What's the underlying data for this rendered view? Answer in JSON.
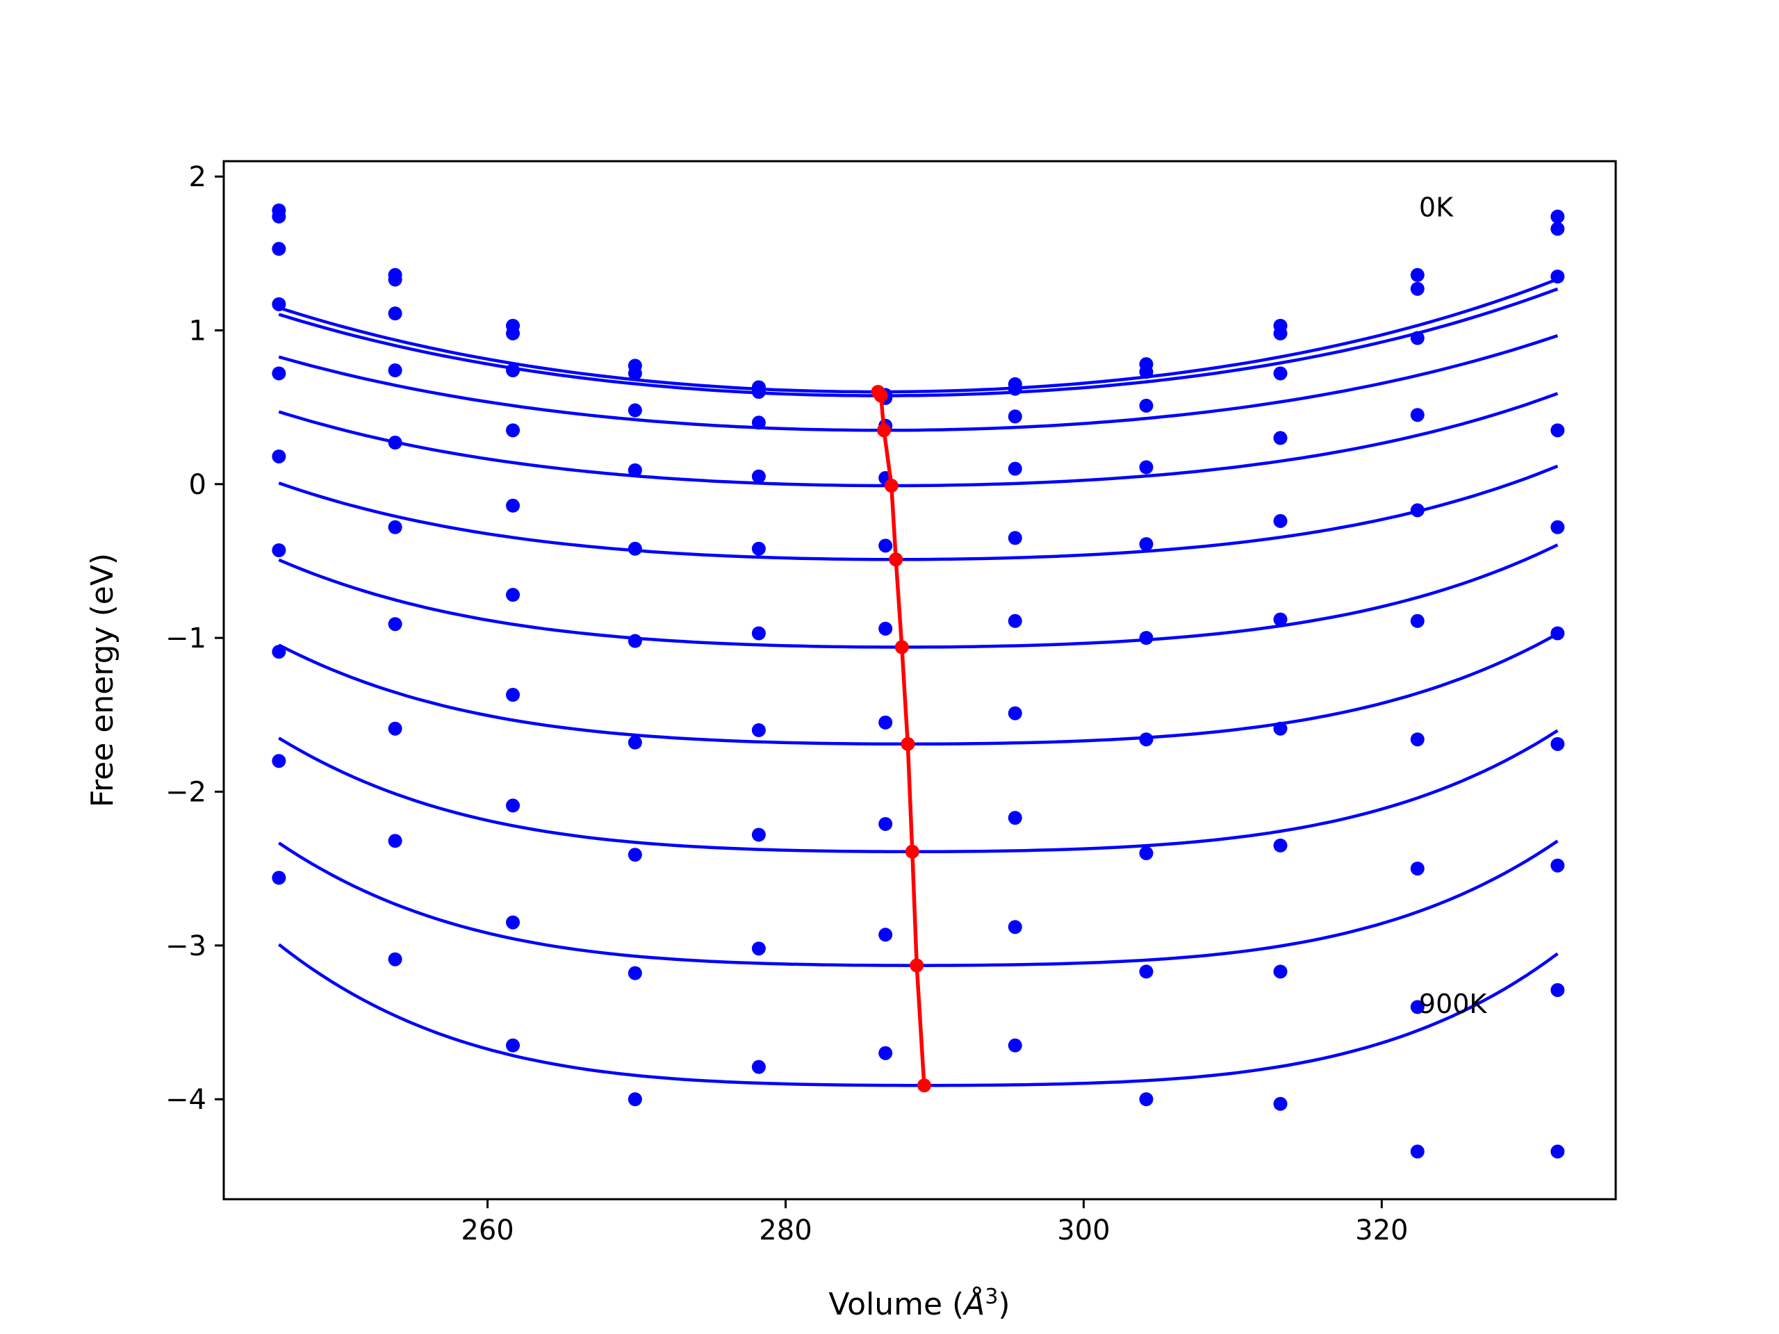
{
  "chart_data": {
    "type": "scatter",
    "xlabel": "Volume (",
    "xlabel_unit": "Å",
    "xlabel_exp": "3",
    "xlabel_close": ")",
    "ylabel": "Free energy (eV)",
    "xlim": [
      242.3,
      335.7
    ],
    "ylim": [
      -4.65,
      2.1
    ],
    "x_ticks": [
      260,
      280,
      300,
      320
    ],
    "x_tick_labels": [
      "260",
      "280",
      "300",
      "320"
    ],
    "y_ticks": [
      -4,
      -3,
      -2,
      -1,
      0,
      1,
      2
    ],
    "y_tick_labels": [
      "−4",
      "−3",
      "−2",
      "−1",
      "0",
      "1",
      "2"
    ],
    "grid": false,
    "annotations": [
      {
        "text": "0K",
        "x": 322.5,
        "y": 1.8
      },
      {
        "text": "900K",
        "x": 322.5,
        "y": -3.38
      }
    ],
    "colors": {
      "points": "#0000ff",
      "fit": "#0000ff",
      "minimum": "#ff0000"
    },
    "volumes": [
      246.0,
      253.8,
      261.7,
      269.9,
      278.2,
      286.7,
      295.4,
      304.2,
      313.2,
      322.4,
      331.8
    ],
    "series": [
      {
        "points": [
          1.78,
          1.36,
          1.03,
          0.77,
          0.63,
          0.58,
          0.65,
          0.78,
          1.03,
          1.36,
          1.74
        ],
        "fit": {
          "a": 0.6,
          "b": 0.00029,
          "c": 3e-08,
          "v0": 286.2
        }
      },
      {
        "points": [
          1.74,
          1.33,
          0.98,
          0.72,
          0.6,
          0.56,
          0.62,
          0.73,
          0.98,
          1.27,
          1.66
        ],
        "fit": {
          "a": 0.575,
          "b": 0.000275,
          "c": 3e-08,
          "v0": 286.4
        }
      },
      {
        "points": [
          1.53,
          1.11,
          0.74,
          0.48,
          0.4,
          0.38,
          0.44,
          0.51,
          0.72,
          0.95,
          1.35
        ],
        "fit": {
          "a": 0.35,
          "b": 0.00024,
          "c": 3e-08,
          "v0": 286.6
        }
      },
      {
        "points": [
          1.17,
          0.74,
          0.35,
          0.09,
          0.05,
          0.04,
          0.1,
          0.11,
          0.3,
          0.45,
          0.35
        ],
        "fit": {
          "a": -0.01,
          "b": 0.0002,
          "c": 5e-08,
          "v0": 287.1
        }
      },
      {
        "points": [
          0.72,
          0.27,
          -0.14,
          -0.42,
          -0.42,
          -0.4,
          -0.35,
          -0.39,
          -0.24,
          -0.17,
          -0.28
        ],
        "fit": {
          "a": -0.49,
          "b": 0.00017,
          "c": 7e-08,
          "v0": 287.4
        }
      },
      {
        "points": [
          0.18,
          -0.28,
          -0.72,
          -1.02,
          -0.97,
          -0.94,
          -0.89,
          -1.0,
          -0.88,
          -0.89,
          -0.97
        ],
        "fit": {
          "a": -1.06,
          "b": 0.00015,
          "c": 1e-07,
          "v0": 287.8
        }
      },
      {
        "points": [
          -0.43,
          -0.91,
          -1.37,
          -1.68,
          -1.6,
          -1.55,
          -1.49,
          -1.66,
          -1.59,
          -1.66,
          -1.69
        ],
        "fit": {
          "a": -1.69,
          "b": 0.00013,
          "c": 1.3e-07,
          "v0": 288.2
        }
      },
      {
        "points": [
          -1.09,
          -1.59,
          -2.09,
          -2.41,
          -2.28,
          -2.21,
          -2.17,
          -2.4,
          -2.35,
          -2.5,
          -2.48
        ],
        "fit": {
          "a": -2.39,
          "b": 0.00012,
          "c": 1.6e-07,
          "v0": 288.5
        }
      },
      {
        "points": [
          -1.8,
          -2.32,
          -2.85,
          -3.18,
          -3.02,
          -2.93,
          -2.88,
          -3.17,
          -3.17,
          -3.4,
          -3.29
        ],
        "fit": {
          "a": -3.13,
          "b": 0.000105,
          "c": 1.8e-07,
          "v0": 288.8
        }
      },
      {
        "points": [
          -2.56,
          -3.09,
          -3.65,
          -4.0,
          -3.79,
          -3.7,
          -3.65,
          -4.0,
          -4.03,
          -4.34,
          -4.34
        ],
        "fit": {
          "a": -3.91,
          "b": 9.5e-05,
          "c": 2.1e-07,
          "v0": 289.3
        }
      }
    ],
    "minimum_path": {
      "x": [
        286.2,
        286.4,
        286.6,
        287.1,
        287.4,
        287.8,
        288.2,
        288.5,
        288.8,
        289.3
      ],
      "y": [
        0.6,
        0.575,
        0.35,
        -0.01,
        -0.49,
        -1.06,
        -1.69,
        -2.39,
        -3.13,
        -3.91
      ]
    }
  }
}
